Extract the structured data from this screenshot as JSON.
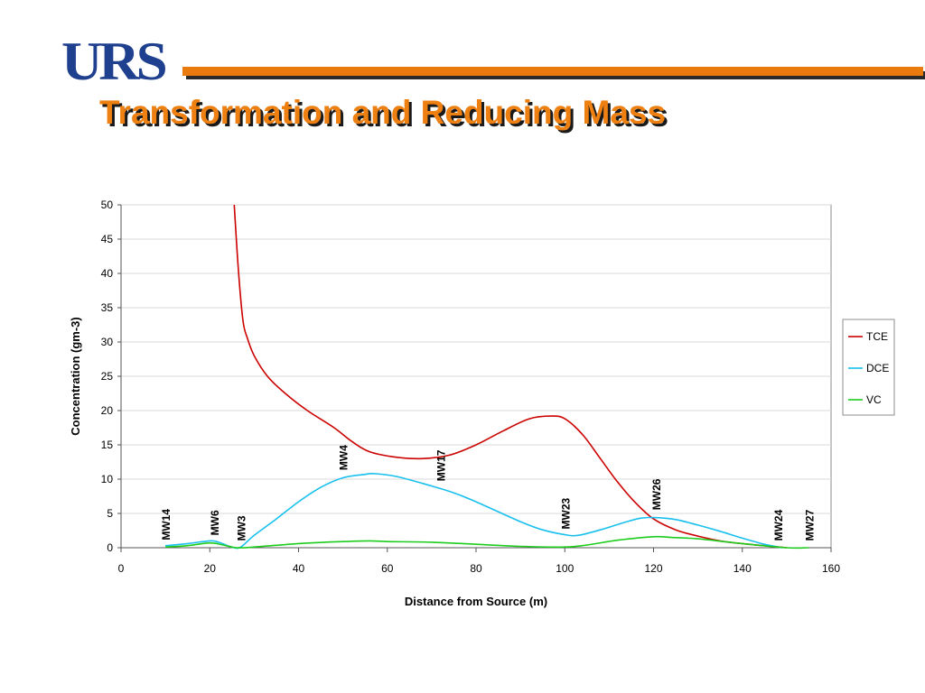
{
  "header": {
    "logo_text": "URS",
    "title": "Transformation and Reducing Mass",
    "accent_color": "#e87a0e",
    "logo_color": "#1f3f8f"
  },
  "chart_data": {
    "type": "line",
    "title": "",
    "xlabel": "Distance from Source (m)",
    "ylabel": "Concentration (gm-3)",
    "xlim": [
      0,
      160
    ],
    "ylim": [
      0,
      50
    ],
    "xticks": [
      0,
      20,
      40,
      60,
      80,
      100,
      120,
      140,
      160
    ],
    "yticks": [
      0,
      5,
      10,
      15,
      20,
      25,
      30,
      35,
      40,
      45,
      50
    ],
    "grid": "horizontal",
    "legend_position": "right",
    "series": [
      {
        "name": "TCE",
        "color": "#cc0000",
        "x": [
          25.5,
          26.5,
          27.5,
          28.5,
          30,
          33,
          37,
          42,
          48,
          52,
          56,
          62,
          68,
          74,
          80,
          86,
          92,
          97,
          100,
          104,
          108,
          112,
          116,
          120,
          125,
          130,
          135,
          140,
          145,
          150
        ],
        "y": [
          50,
          40,
          33,
          30.5,
          28,
          25,
          22.5,
          20,
          17.5,
          15.5,
          14,
          13.2,
          13.0,
          13.5,
          15,
          17,
          18.8,
          19.2,
          18.8,
          16.5,
          13,
          9.5,
          6.5,
          4.2,
          2.6,
          1.7,
          1.0,
          0.6,
          0.3,
          0
        ]
      },
      {
        "name": "DCE",
        "color": "#19c0ee",
        "x": [
          10,
          15,
          20,
          22,
          24,
          25.5,
          27,
          30,
          35,
          40,
          45,
          50,
          55,
          57,
          62,
          70,
          75,
          80,
          90,
          95,
          100,
          103,
          108,
          113,
          117,
          120,
          125,
          130,
          135,
          140,
          145,
          149
        ],
        "y": [
          0.3,
          0.6,
          1.0,
          0.8,
          0.3,
          0,
          0.1,
          1.8,
          4.2,
          6.7,
          8.8,
          10.2,
          10.7,
          10.8,
          10.4,
          9.0,
          8.0,
          6.7,
          3.8,
          2.6,
          1.9,
          1.8,
          2.6,
          3.6,
          4.3,
          4.4,
          4.1,
          3.3,
          2.4,
          1.4,
          0.5,
          0
        ]
      },
      {
        "name": "VC",
        "color": "#1dcc1d",
        "x": [
          10,
          15,
          20,
          23,
          26,
          30,
          40,
          50,
          56,
          60,
          70,
          80,
          90,
          100,
          105,
          112,
          120,
          124,
          130,
          140,
          150,
          155
        ],
        "y": [
          0.1,
          0.3,
          0.7,
          0.4,
          0,
          0.1,
          0.6,
          0.9,
          1.0,
          0.9,
          0.8,
          0.5,
          0.2,
          0.1,
          0.4,
          1.1,
          1.6,
          1.5,
          1.3,
          0.6,
          0,
          0
        ]
      }
    ],
    "well_labels": [
      {
        "label": "MW14",
        "x": 10,
        "y": 1.1
      },
      {
        "label": "MW6",
        "x": 21,
        "y": 1.8
      },
      {
        "label": "MW3",
        "x": 27,
        "y": 1.0
      },
      {
        "label": "MW4",
        "x": 50,
        "y": 11.3
      },
      {
        "label": "MW17",
        "x": 72,
        "y": 9.7
      },
      {
        "label": "MW23",
        "x": 100,
        "y": 2.7
      },
      {
        "label": "MW26",
        "x": 120.5,
        "y": 5.5
      },
      {
        "label": "MW24",
        "x": 148,
        "y": 1.0
      },
      {
        "label": "MW27",
        "x": 155,
        "y": 1.0
      }
    ]
  }
}
